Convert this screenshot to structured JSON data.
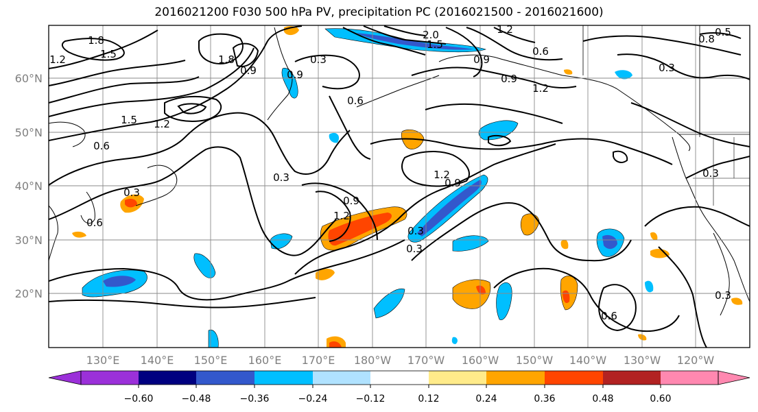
{
  "title": "2016021200 F030 500 hPa PV, precipitation PC (2016021500 - 2016021600)",
  "map": {
    "lat_ticks": [
      "60°N",
      "50°N",
      "40°N",
      "30°N",
      "20°N"
    ],
    "lon_ticks": [
      "130°E",
      "140°E",
      "150°E",
      "160°E",
      "170°E",
      "180°W",
      "170°W",
      "160°W",
      "150°W",
      "140°W",
      "130°W",
      "120°W"
    ],
    "contour_labels": [
      "1.8",
      "1.5",
      "1.2",
      "0.9",
      "0.6",
      "0.3",
      "1.5",
      "1.8",
      "0.3",
      "0.6",
      "0.9",
      "1.2",
      "0.6",
      "0.9",
      "1.2",
      "0.3",
      "0.3",
      "0.3",
      "1.2",
      "0.9",
      "0.3",
      "0.6",
      "0.3",
      "0.3",
      "1.2",
      "0.9",
      "0.6",
      "1.2",
      "2.0",
      "0.9",
      "1.5",
      "0.5",
      "0.8"
    ]
  },
  "colorbar": {
    "ticks": [
      "−0.60",
      "−0.48",
      "−0.36",
      "−0.24",
      "−0.12",
      "0.12",
      "0.24",
      "0.36",
      "0.48",
      "0.60"
    ],
    "colors": [
      "#9b30d9",
      "#000080",
      "#3358cc",
      "#00bfff",
      "#b0e2ff",
      "#ffffff",
      "#ffeb8a",
      "#ffa500",
      "#ff4500",
      "#b22222",
      "#ff88b0"
    ]
  }
}
